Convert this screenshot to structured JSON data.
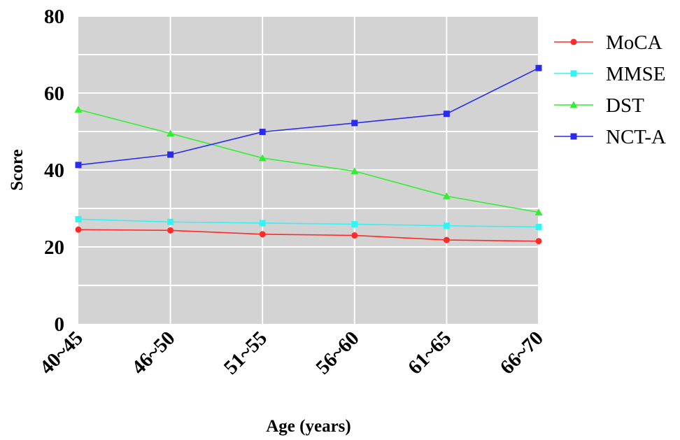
{
  "chart_data": {
    "type": "line",
    "title": "",
    "xlabel": "Age (years)",
    "ylabel": "Score",
    "categories": [
      "40~45",
      "46~50",
      "51~55",
      "56~60",
      "61~65",
      "66~70"
    ],
    "ylim": [
      0,
      80
    ],
    "yticks": [
      0,
      20,
      40,
      60,
      80
    ],
    "grid": true,
    "legend_position": "right",
    "series": [
      {
        "name": "MoCA",
        "color": "#ff2a2a",
        "marker": "circle",
        "values": [
          24.5,
          24.3,
          23.3,
          23.0,
          21.8,
          21.5
        ]
      },
      {
        "name": "MMSE",
        "color": "#33f3f3",
        "marker": "square",
        "values": [
          27.2,
          26.5,
          26.2,
          25.9,
          25.5,
          25.2
        ]
      },
      {
        "name": "DST",
        "color": "#33ee33",
        "marker": "triangle",
        "values": [
          55.7,
          49.5,
          43.1,
          39.7,
          33.2,
          29.0
        ]
      },
      {
        "name": "NCT-A",
        "color": "#2b2bee",
        "marker": "square",
        "values": [
          41.3,
          44.0,
          49.9,
          52.2,
          54.6,
          66.5
        ]
      }
    ]
  }
}
